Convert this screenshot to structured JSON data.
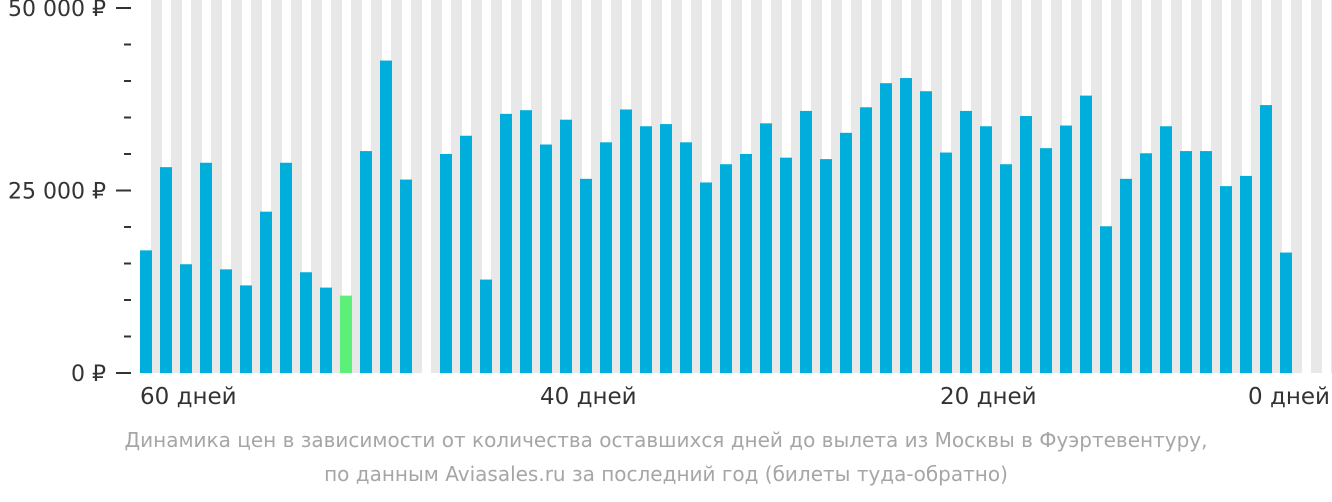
{
  "chart_data": {
    "type": "bar",
    "title": "",
    "xlabel": "",
    "ylabel": "",
    "ylim": [
      0,
      50000
    ],
    "y_ticks": [
      {
        "value": 0,
        "label": "0 ₽"
      },
      {
        "value": 25000,
        "label": "25 000 ₽"
      },
      {
        "value": 50000,
        "label": "50 000 ₽"
      }
    ],
    "minor_y_ticks": [
      5000,
      10000,
      15000,
      20000,
      30000,
      35000,
      40000,
      45000
    ],
    "x_range": [
      60,
      0
    ],
    "x_ticks": [
      {
        "value": 60,
        "label": "60 дней"
      },
      {
        "value": 40,
        "label": "40 дней"
      },
      {
        "value": 20,
        "label": "20 дней"
      },
      {
        "value": 0,
        "label": "0 дней"
      }
    ],
    "days": [
      60,
      59,
      58,
      57,
      56,
      55,
      54,
      53,
      52,
      51,
      50,
      49,
      48,
      47,
      46,
      45,
      44,
      43,
      42,
      41,
      40,
      39,
      38,
      37,
      36,
      35,
      34,
      33,
      32,
      31,
      30,
      29,
      28,
      27,
      26,
      25,
      24,
      23,
      22,
      21,
      20,
      19,
      18,
      17,
      16,
      15,
      14,
      13,
      12,
      11,
      10,
      9,
      8,
      7,
      6,
      5,
      4,
      3,
      2,
      1,
      0
    ],
    "values": [
      16800,
      28200,
      14900,
      28800,
      14200,
      12000,
      22100,
      28800,
      13800,
      11700,
      10600,
      30400,
      42800,
      26500,
      null,
      30000,
      32500,
      12800,
      35500,
      36000,
      31300,
      34700,
      26600,
      31600,
      36100,
      33800,
      34100,
      31600,
      26100,
      28600,
      30000,
      34200,
      29500,
      35900,
      29300,
      32900,
      36400,
      39700,
      40400,
      38600,
      30200,
      35900,
      33800,
      28600,
      35200,
      30800,
      33900,
      38000,
      20100,
      26600,
      30100,
      33800,
      30400,
      30400,
      25600,
      27000,
      36700,
      16500,
      null,
      null,
      null
    ],
    "highlight_day": 50,
    "bar_color": "#00aedb",
    "highlight_color": "#5cf07a",
    "stripe_color": "#e8e8e8",
    "grid": false,
    "caption_lines": [
      "Динамика цен в зависимости от количества оставшихся дней до вылета из Москвы в Фуэртевентуру,",
      "по данным Aviasales.ru за последний год (билеты туда-обратно)"
    ]
  }
}
